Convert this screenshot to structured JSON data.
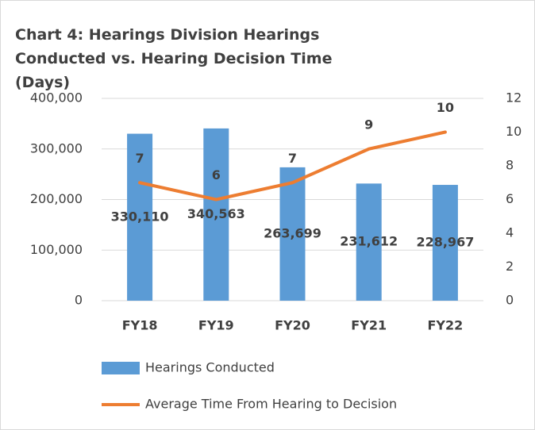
{
  "chart_data": {
    "type": "bar_line",
    "title": "Chart 4: Hearings Division Hearings Conducted vs. Hearing Decision Time (Days)",
    "categories": [
      "FY18",
      "FY19",
      "FY20",
      "FY21",
      "FY22"
    ],
    "series": [
      {
        "name": "Hearings Conducted",
        "type": "bar",
        "color": "#5b9bd5",
        "axis": "y",
        "values": [
          330110,
          340563,
          263699,
          231612,
          228967
        ],
        "value_labels": [
          "330,110",
          "340,563",
          "263,699",
          "231,612",
          "228,967"
        ]
      },
      {
        "name": "Average Time From Hearing to Decision",
        "type": "line",
        "color": "#ed7d31",
        "axis": "y2",
        "values": [
          7,
          6,
          7,
          9,
          10
        ]
      }
    ],
    "ylim": [
      0,
      400000
    ],
    "yticks": [
      0,
      {
        "value": 100000,
        "label": "100,000"
      },
      {
        "value": 200000,
        "label": "200,000"
      },
      {
        "value": 300000,
        "label": "300,000"
      },
      {
        "value": 400000,
        "label": "400,000"
      }
    ],
    "y2lim": [
      0,
      12
    ],
    "y2ticks": [
      0,
      2,
      4,
      6,
      8,
      10,
      12
    ],
    "grid": true,
    "legend": "bottom"
  }
}
